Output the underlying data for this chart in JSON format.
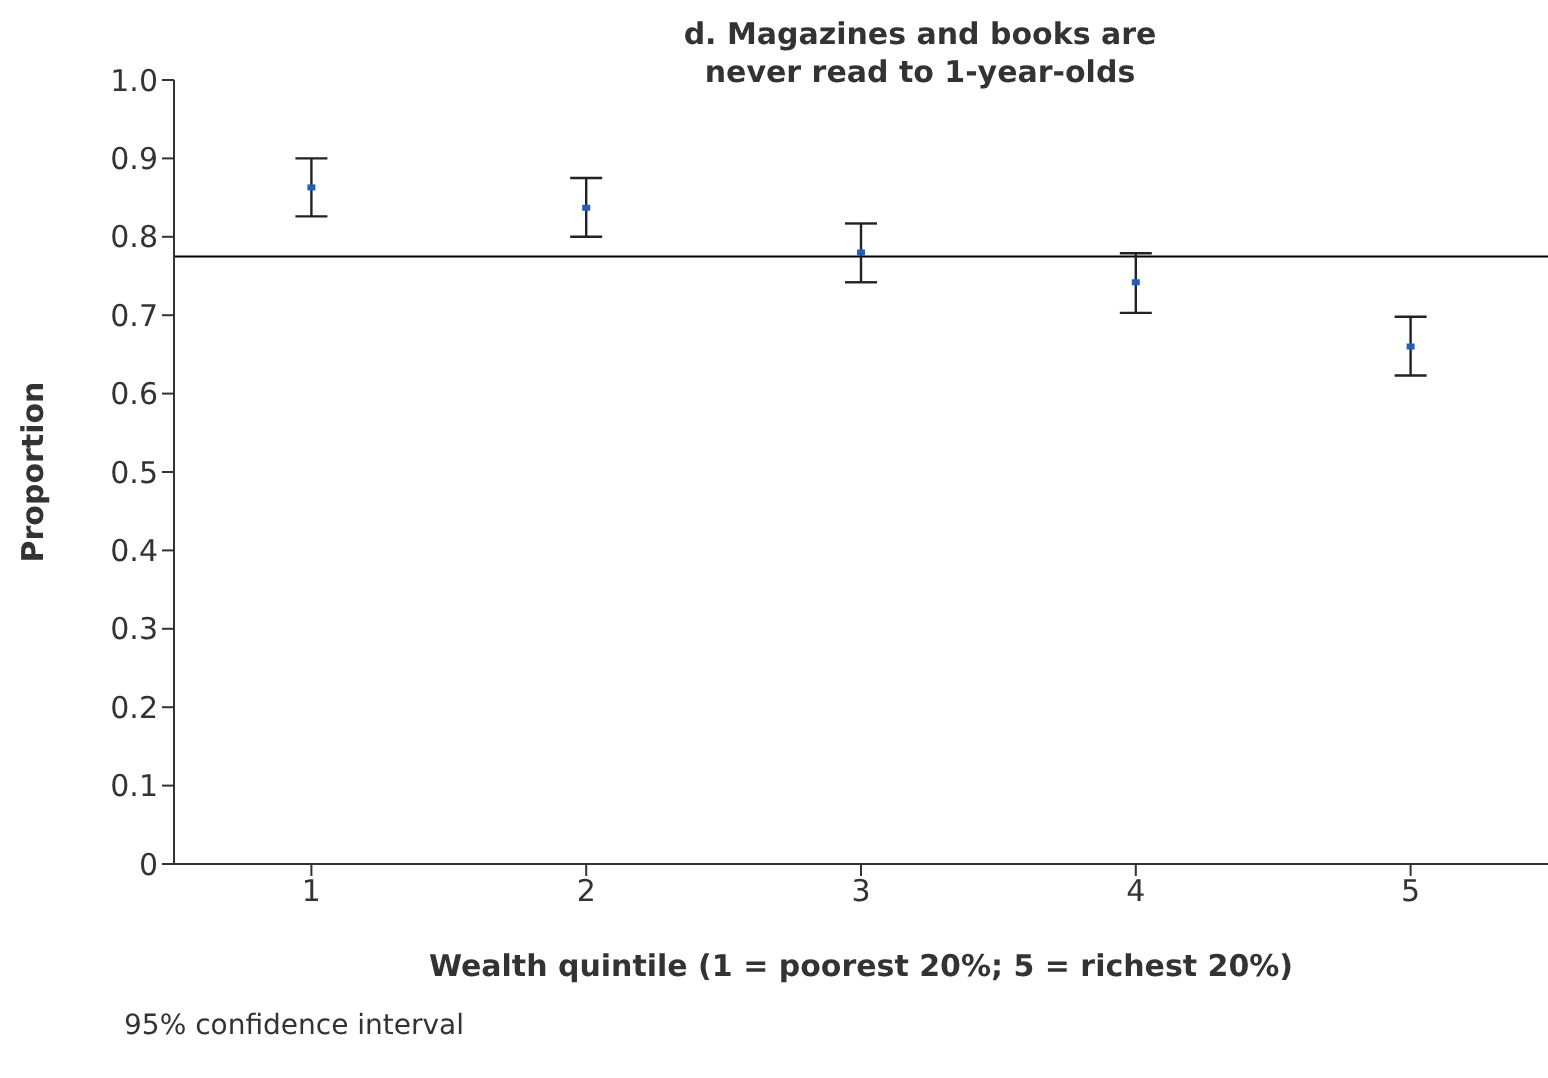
{
  "chart_data": {
    "type": "scatter",
    "title": "d. Magazines and books are never read to 1-year-olds",
    "xlabel": "Wealth quintile (1 = poorest 20%; 5 = richest 20%)",
    "ylabel": "Proportion",
    "categories": [
      "1",
      "2",
      "3",
      "4",
      "5"
    ],
    "series": [
      {
        "color": "#1f5fbf",
        "values": [
          0.863,
          0.837,
          0.78,
          0.742,
          0.66
        ],
        "errors": [
          [
            0.826,
            0.9
          ],
          [
            0.8,
            0.875
          ],
          [
            0.742,
            0.817
          ],
          [
            0.703,
            0.779
          ],
          [
            0.623,
            0.698
          ]
        ]
      }
    ],
    "ylim": [
      0,
      1
    ],
    "yticks": [
      0,
      0.1,
      0.2,
      0.3,
      0.4,
      0.5,
      0.6,
      0.7,
      0.8,
      0.9,
      {
        "value": 1,
        "label": "1.0"
      }
    ],
    "ref_lines": [
      {
        "axis": "y",
        "value": 0.775,
        "color": "#000000"
      }
    ],
    "marker": "square",
    "grid": false,
    "legend": false,
    "annotations": [
      "95% confidence interval"
    ]
  }
}
